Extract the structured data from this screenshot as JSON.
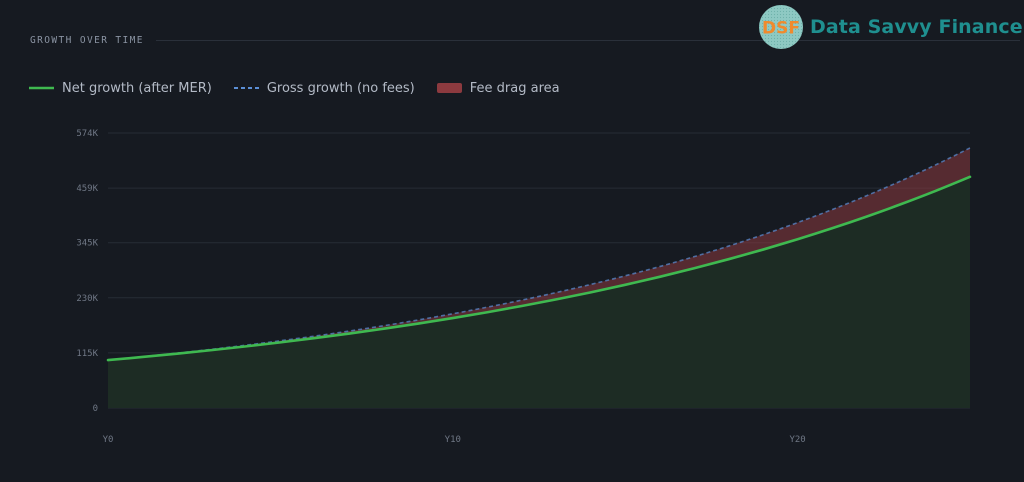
{
  "header": {
    "section_title": "GROWTH OVER TIME"
  },
  "brand": {
    "logo_text": "DSF",
    "name": "Data Savvy Finance",
    "name_color": "#1f8f8f",
    "logo_colors": {
      "circle": "#8ec9c3",
      "letters": "#f08a2c"
    }
  },
  "legend": {
    "items": [
      {
        "label": "Net growth (after MER)",
        "style": "solid-line",
        "color": "#3fb950"
      },
      {
        "label": "Gross growth (no fees)",
        "style": "dashed-line",
        "color": "#5b8fd6"
      },
      {
        "label": "Fee drag area",
        "style": "filled-box",
        "color": "#8c3a3f"
      }
    ]
  },
  "chart_data": {
    "type": "area",
    "x": [
      0,
      1,
      2,
      3,
      4,
      5,
      6,
      7,
      8,
      9,
      10,
      11,
      12,
      13,
      14,
      15,
      16,
      17,
      18,
      19,
      20,
      21,
      22,
      23,
      24,
      25
    ],
    "series": [
      {
        "name": "Net growth (after MER)",
        "color": "#3fb950",
        "values": [
          100000,
          106500,
          113400,
          120800,
          128600,
          137000,
          145900,
          155400,
          165500,
          176200,
          187700,
          199900,
          212900,
          226700,
          241400,
          257100,
          273800,
          291600,
          310600,
          330700,
          352200,
          375100,
          399500,
          425500,
          453100,
          482500
        ]
      },
      {
        "name": "Gross growth (no fees)",
        "color": "#5b8fd6",
        "values": [
          100000,
          107000,
          114500,
          122500,
          131100,
          140300,
          150100,
          160600,
          171800,
          183800,
          196700,
          210500,
          225200,
          241000,
          257900,
          275900,
          295200,
          315900,
          338000,
          361700,
          387000,
          414100,
          443100,
          474100,
          507300,
          542800
        ]
      }
    ],
    "fee_drag_fill": "#8c3a3f",
    "net_fill": "#1d2c24",
    "title": "",
    "xlabel": "",
    "ylabel": "",
    "ylim": [
      0,
      574000
    ],
    "xlim": [
      0,
      25
    ],
    "y_ticks": [
      {
        "value": 0,
        "label": "0"
      },
      {
        "value": 115000,
        "label": "115K"
      },
      {
        "value": 230000,
        "label": "230K"
      },
      {
        "value": 345000,
        "label": "345K"
      },
      {
        "value": 459000,
        "label": "459K"
      },
      {
        "value": 574000,
        "label": "574K"
      }
    ],
    "x_ticks": [
      {
        "value": 0,
        "label": "Y0"
      },
      {
        "value": 10,
        "label": "Y10"
      },
      {
        "value": 20,
        "label": "Y20"
      }
    ],
    "grid": true,
    "legend_position": "top-left"
  }
}
